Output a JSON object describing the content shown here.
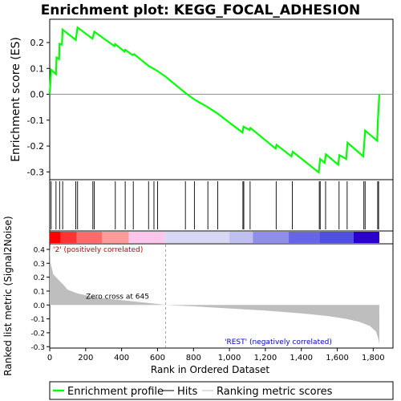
{
  "chart_data": {
    "type": "line",
    "title": "Enrichment plot: KEGG_FOCAL_ADHESION",
    "es_ylabel": "Enrichment score (ES)",
    "es_yticks": [
      0.2,
      0.1,
      0.0,
      -0.1,
      -0.2,
      -0.3
    ],
    "es_ylim": [
      -0.33,
      0.29
    ],
    "metric_ylabel": "Ranked list metric (Signal2Noise)",
    "metric_yticks": [
      0.4,
      0.3,
      0.2,
      0.1,
      0.0,
      -0.1,
      -0.2,
      -0.3
    ],
    "metric_ylim": [
      -0.31,
      0.44
    ],
    "xlabel": "Rank in Ordered Dataset",
    "xticks": [
      0,
      200,
      400,
      600,
      800,
      1000,
      1200,
      1400,
      1600,
      1800
    ],
    "xlim": [
      0,
      1910
    ],
    "n_genes": 1834,
    "zero_cross_label": "Zero cross at 645",
    "zero_cross": 645,
    "pos_label": "'2' (positively correlated)",
    "neg_label": "'REST' (negatively correlated)",
    "hits": [
      8,
      35,
      55,
      72,
      145,
      155,
      240,
      248,
      365,
      420,
      465,
      550,
      580,
      600,
      755,
      805,
      880,
      935,
      1075,
      1080,
      1115,
      1260,
      1350,
      1500,
      1505,
      1535,
      1610,
      1655,
      1748,
      1755,
      1825,
      1830
    ],
    "es_profile": [
      {
        "x": 0,
        "y": 0.0
      },
      {
        "x": 8,
        "y": 0.095
      },
      {
        "x": 35,
        "y": 0.078
      },
      {
        "x": 38,
        "y": 0.142
      },
      {
        "x": 52,
        "y": 0.136
      },
      {
        "x": 55,
        "y": 0.195
      },
      {
        "x": 68,
        "y": 0.192
      },
      {
        "x": 72,
        "y": 0.25
      },
      {
        "x": 145,
        "y": 0.21
      },
      {
        "x": 155,
        "y": 0.258
      },
      {
        "x": 238,
        "y": 0.215
      },
      {
        "x": 248,
        "y": 0.242
      },
      {
        "x": 360,
        "y": 0.186
      },
      {
        "x": 365,
        "y": 0.194
      },
      {
        "x": 416,
        "y": 0.165
      },
      {
        "x": 420,
        "y": 0.172
      },
      {
        "x": 460,
        "y": 0.152
      },
      {
        "x": 470,
        "y": 0.155
      },
      {
        "x": 550,
        "y": 0.11
      },
      {
        "x": 600,
        "y": 0.09
      },
      {
        "x": 645,
        "y": 0.068
      },
      {
        "x": 755,
        "y": 0.005
      },
      {
        "x": 805,
        "y": -0.02
      },
      {
        "x": 880,
        "y": -0.05
      },
      {
        "x": 935,
        "y": -0.075
      },
      {
        "x": 1073,
        "y": -0.148
      },
      {
        "x": 1078,
        "y": -0.125
      },
      {
        "x": 1112,
        "y": -0.138
      },
      {
        "x": 1117,
        "y": -0.13
      },
      {
        "x": 1257,
        "y": -0.21
      },
      {
        "x": 1262,
        "y": -0.195
      },
      {
        "x": 1345,
        "y": -0.24
      },
      {
        "x": 1352,
        "y": -0.222
      },
      {
        "x": 1497,
        "y": -0.302
      },
      {
        "x": 1505,
        "y": -0.25
      },
      {
        "x": 1530,
        "y": -0.265
      },
      {
        "x": 1537,
        "y": -0.232
      },
      {
        "x": 1605,
        "y": -0.272
      },
      {
        "x": 1612,
        "y": -0.235
      },
      {
        "x": 1650,
        "y": -0.25
      },
      {
        "x": 1657,
        "y": -0.187
      },
      {
        "x": 1745,
        "y": -0.24
      },
      {
        "x": 1755,
        "y": -0.14
      },
      {
        "x": 1822,
        "y": -0.18
      },
      {
        "x": 1826,
        "y": -0.1
      },
      {
        "x": 1834,
        "y": 0.0
      }
    ],
    "metric_profile": [
      {
        "x": 0,
        "y": 0.43
      },
      {
        "x": 5,
        "y": 0.3
      },
      {
        "x": 20,
        "y": 0.22
      },
      {
        "x": 50,
        "y": 0.18
      },
      {
        "x": 80,
        "y": 0.14
      },
      {
        "x": 100,
        "y": 0.11
      },
      {
        "x": 150,
        "y": 0.085
      },
      {
        "x": 250,
        "y": 0.055
      },
      {
        "x": 400,
        "y": 0.035
      },
      {
        "x": 550,
        "y": 0.015
      },
      {
        "x": 645,
        "y": 0.0
      },
      {
        "x": 800,
        "y": -0.01
      },
      {
        "x": 1000,
        "y": -0.025
      },
      {
        "x": 1200,
        "y": -0.04
      },
      {
        "x": 1400,
        "y": -0.06
      },
      {
        "x": 1550,
        "y": -0.08
      },
      {
        "x": 1650,
        "y": -0.1
      },
      {
        "x": 1720,
        "y": -0.12
      },
      {
        "x": 1780,
        "y": -0.15
      },
      {
        "x": 1815,
        "y": -0.19
      },
      {
        "x": 1828,
        "y": -0.24
      },
      {
        "x": 1834,
        "y": -0.28
      }
    ],
    "heatbar": [
      {
        "from": 0,
        "to": 60,
        "color": "#ff0000"
      },
      {
        "from": 60,
        "to": 150,
        "color": "#ff3333"
      },
      {
        "from": 150,
        "to": 290,
        "color": "#ff6a6a"
      },
      {
        "from": 290,
        "to": 440,
        "color": "#ff9a9a"
      },
      {
        "from": 440,
        "to": 640,
        "color": "#ffc6ec"
      },
      {
        "from": 640,
        "to": 1000,
        "color": "#d8d8f5"
      },
      {
        "from": 1000,
        "to": 1130,
        "color": "#c0c0f0"
      },
      {
        "from": 1130,
        "to": 1330,
        "color": "#8f8fea"
      },
      {
        "from": 1330,
        "to": 1500,
        "color": "#6666e6"
      },
      {
        "from": 1500,
        "to": 1690,
        "color": "#5050e0"
      },
      {
        "from": 1690,
        "to": 1834,
        "color": "#2a00cc"
      }
    ],
    "legend": [
      "Enrichment profile",
      "Hits",
      "Ranking metric scores"
    ],
    "colors": {
      "profile": "#00ff00",
      "hits": "#000000",
      "metric_fill": "#bebebe",
      "zero_line": "#c0c0c0",
      "pos_label": "#cc0000",
      "neg_label": "#0000cc"
    }
  }
}
